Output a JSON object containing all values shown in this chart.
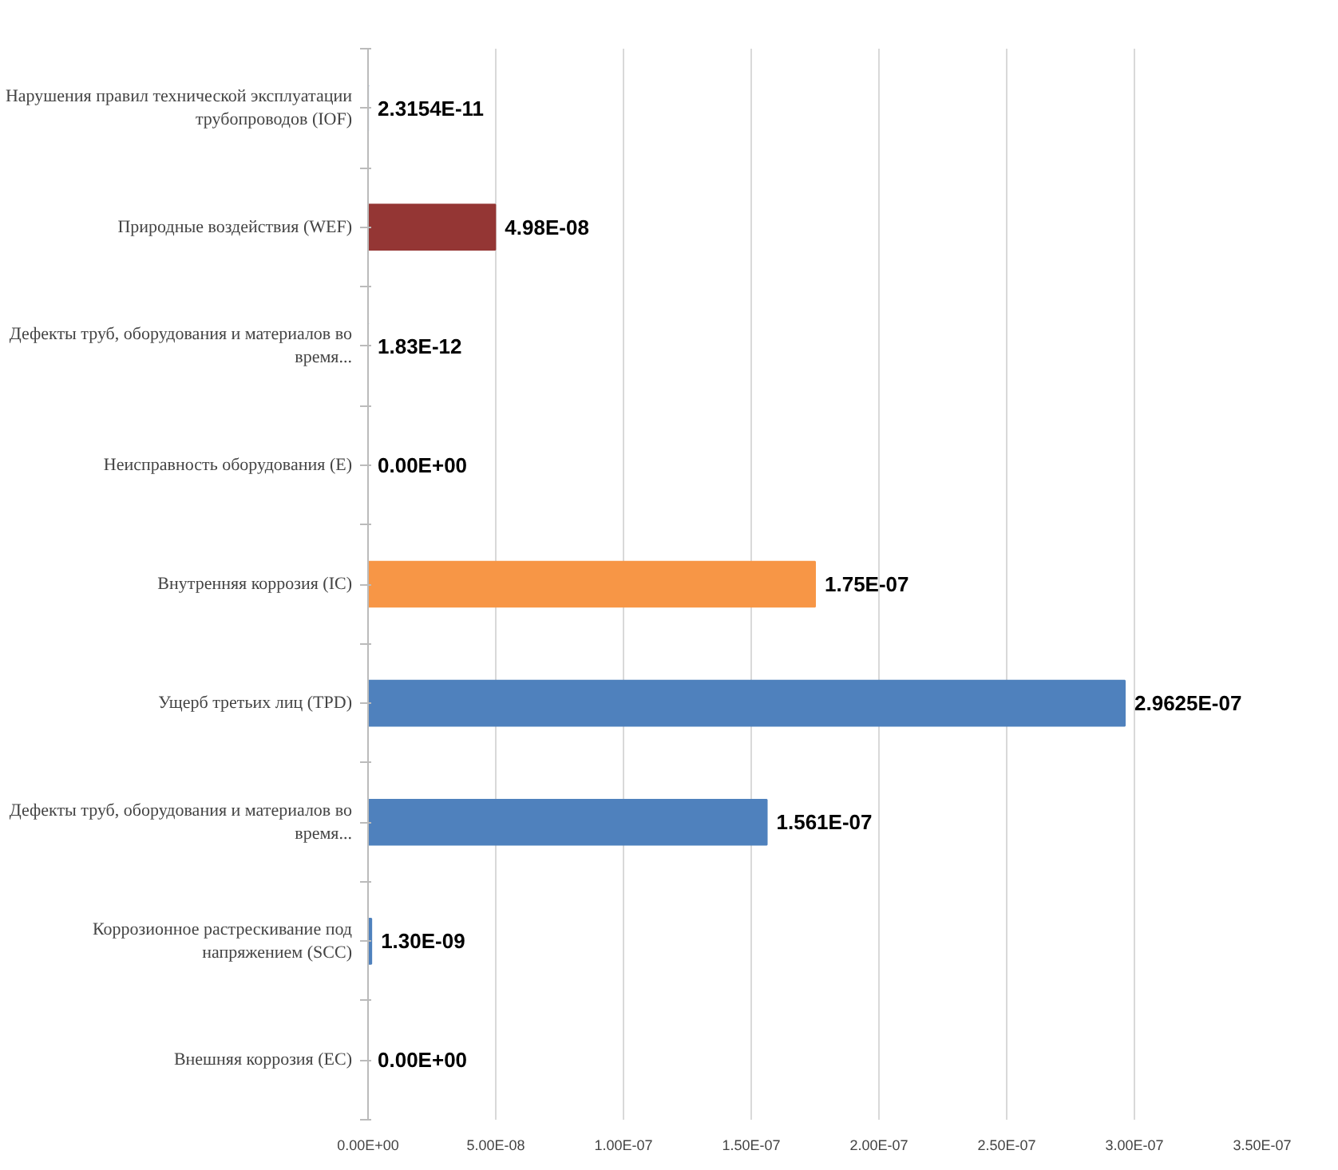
{
  "chart_data": {
    "type": "bar",
    "orientation": "horizontal",
    "categories": [
      "Нарушения правил технической эксплуатации трубопроводов (IOF)",
      "Природные воздействия (WEF)",
      "Дефекты труб, оборудования и материалов во время...",
      "Неисправность оборудования (E)",
      "Внутренняя коррозия (IC)",
      "Ущерб третьих лиц (TPD)",
      "Дефекты труб, оборудования и материалов во время...",
      "Коррозионное растрескивание под напряжением (SCC)",
      "Внешняя коррозия (EC)"
    ],
    "values": [
      2.3154e-11,
      4.98e-08,
      1.83e-12,
      0,
      1.75e-07,
      2.9625e-07,
      1.561e-07,
      1.3e-09,
      0
    ],
    "colors": [
      "#4f81bd",
      "#943634",
      "#4f81bd",
      "#4f81bd",
      "#f79646",
      "#4f81bd",
      "#4f81bd",
      "#4f81bd",
      "#4f81bd"
    ],
    "value_labels": [
      "2.3154E-11",
      "4.98E-08",
      "1.83E-12",
      "0.00E+00",
      "1.75E-07",
      "2.9625E-07",
      "1.561E-07",
      "1.30E-09",
      "0.00E+00"
    ],
    "xlim": [
      0,
      3.5e-07
    ],
    "xticks": [
      {
        "value": 0,
        "label": "0.00E+00"
      },
      {
        "value": 5e-08,
        "label": "5.00E-08"
      },
      {
        "value": 1e-07,
        "label": "1.00E-07"
      },
      {
        "value": 1.5e-07,
        "label": "1.50E-07"
      },
      {
        "value": 2e-07,
        "label": "2.00E-07"
      },
      {
        "value": 2.5e-07,
        "label": "2.50E-07"
      },
      {
        "value": 3e-07,
        "label": "3.00E-07"
      },
      {
        "value": 3.5e-07,
        "label": "3.50E-07"
      }
    ],
    "grid": "x"
  }
}
